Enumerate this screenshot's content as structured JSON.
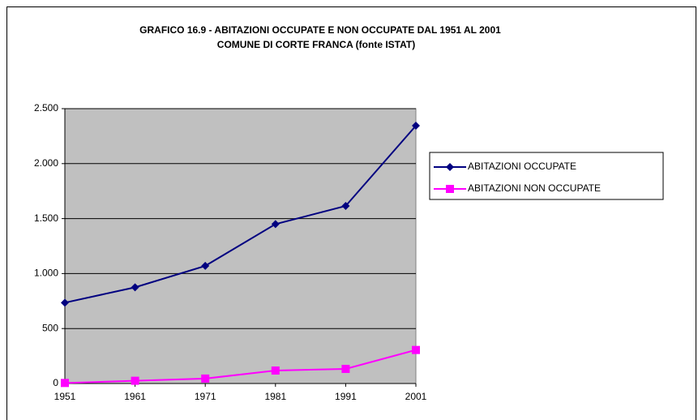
{
  "chart_data": {
    "type": "line",
    "title": "GRAFICO 16.9 - ABITAZIONI OCCUPATE E NON OCCUPATE DAL 1951 AL 2001",
    "subtitle": "COMUNE  DI CORTE FRANCA (fonte ISTAT)",
    "x": [
      1951,
      1961,
      1971,
      1981,
      1991,
      2001
    ],
    "xlim": [
      1951,
      2001
    ],
    "xticks": [
      1951,
      1961,
      1971,
      1981,
      1991,
      2001
    ],
    "ylim": [
      0,
      2500
    ],
    "yticks": [
      0,
      500,
      {
        "value": 1000,
        "label": "1.000"
      },
      {
        "value": 1500,
        "label": "1.500"
      },
      {
        "value": 2000,
        "label": "2.000"
      },
      {
        "value": 2500,
        "label": "2.500"
      }
    ],
    "grid": true,
    "legend": "right",
    "series": [
      {
        "name": "ABITAZIONI OCCUPATE",
        "color": "#000080",
        "marker": "diamond",
        "values": [
          735,
          875,
          1070,
          1450,
          1615,
          2345
        ]
      },
      {
        "name": "ABITAZIONI NON OCCUPATE",
        "color": "#ff00ff",
        "marker": "square",
        "values": [
          5,
          25,
          45,
          118,
          133,
          305
        ]
      }
    ]
  }
}
